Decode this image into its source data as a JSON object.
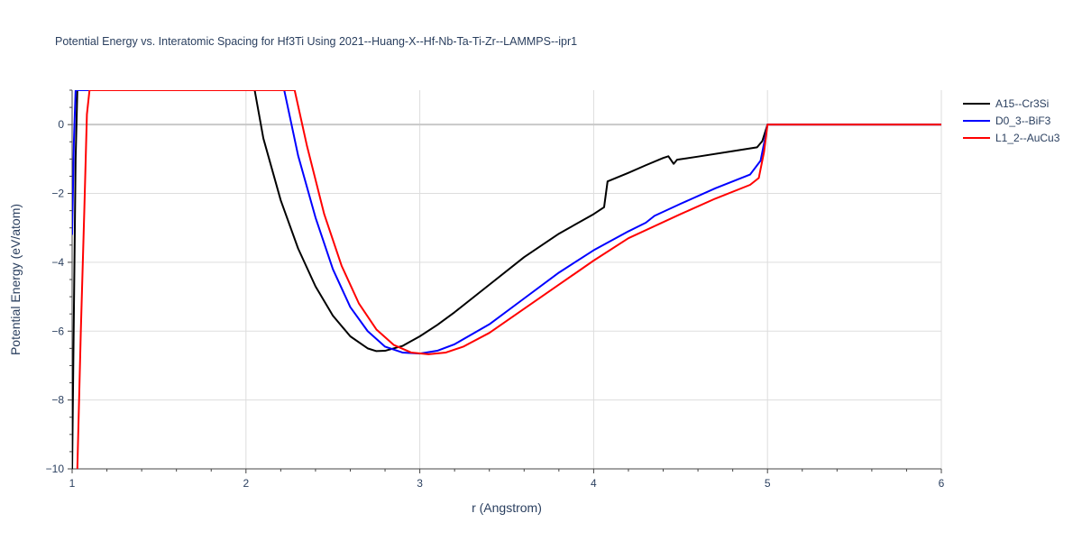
{
  "chart_data": {
    "type": "line",
    "title": "Potential Energy vs. Interatomic Spacing for Hf3Ti Using 2021--Huang-X--Hf-Nb-Ta-Ti-Zr--LAMMPS--ipr1",
    "xlabel": "r (Angstrom)",
    "ylabel": "Potential Energy (eV/atom)",
    "xlim": [
      1,
      6
    ],
    "ylim": [
      -10,
      1
    ],
    "xticks": [
      1,
      2,
      3,
      4,
      5,
      6
    ],
    "xtick_labels": [
      "1",
      "2",
      "3",
      "4",
      "5",
      "6"
    ],
    "yticks": [
      -10,
      -8,
      -6,
      -4,
      -2,
      0
    ],
    "ytick_labels": [
      "−10",
      "−8",
      "−6",
      "−4",
      "−2",
      "0"
    ],
    "grid": true,
    "legend_position": "right",
    "series": [
      {
        "name": "A15--Cr3Si",
        "color": "#000000",
        "x": [
          1.0,
          1.02,
          1.03,
          2.05,
          2.1,
          2.2,
          2.3,
          2.4,
          2.5,
          2.6,
          2.7,
          2.75,
          2.8,
          2.9,
          3.0,
          3.1,
          3.2,
          3.4,
          3.6,
          3.8,
          4.0,
          4.06,
          4.08,
          4.2,
          4.3,
          4.4,
          4.43,
          4.46,
          4.48,
          4.6,
          4.8,
          4.94,
          4.97,
          5.0,
          5.5,
          6.0
        ],
        "y": [
          -10,
          -1.0,
          1,
          1,
          -0.4,
          -2.2,
          -3.6,
          -4.7,
          -5.55,
          -6.15,
          -6.5,
          -6.58,
          -6.57,
          -6.43,
          -6.15,
          -5.82,
          -5.45,
          -4.65,
          -3.85,
          -3.17,
          -2.6,
          -2.4,
          -1.65,
          -1.4,
          -1.18,
          -0.97,
          -0.92,
          -1.14,
          -1.02,
          -0.93,
          -0.77,
          -0.66,
          -0.48,
          0.0,
          0.0,
          0.0
        ]
      },
      {
        "name": "D0_3--BiF3",
        "color": "#0000ff",
        "x": [
          1.0,
          1.01,
          1.02,
          2.22,
          2.3,
          2.4,
          2.5,
          2.6,
          2.7,
          2.8,
          2.9,
          3.0,
          3.1,
          3.2,
          3.4,
          3.6,
          3.8,
          4.0,
          4.2,
          4.3,
          4.35,
          4.5,
          4.7,
          4.9,
          4.96,
          4.99,
          5.0,
          5.5,
          6.0
        ],
        "y": [
          -3.2,
          -0.5,
          1,
          1,
          -0.9,
          -2.7,
          -4.2,
          -5.3,
          -6.0,
          -6.45,
          -6.62,
          -6.65,
          -6.57,
          -6.38,
          -5.8,
          -5.05,
          -4.3,
          -3.65,
          -3.1,
          -2.85,
          -2.65,
          -2.3,
          -1.85,
          -1.45,
          -1.05,
          -0.3,
          0.0,
          0.0,
          0.0
        ]
      },
      {
        "name": "L1_2--AuCu3",
        "color": "#ff0000",
        "x": [
          1.03,
          1.05,
          1.07,
          1.085,
          1.1,
          2.28,
          2.35,
          2.45,
          2.55,
          2.65,
          2.75,
          2.85,
          2.95,
          3.05,
          3.15,
          3.25,
          3.4,
          3.6,
          3.8,
          4.0,
          4.2,
          4.5,
          4.7,
          4.9,
          4.95,
          4.98,
          5.0,
          5.5,
          6.0
        ],
        "y": [
          -10,
          -6.0,
          -2.5,
          0.3,
          1,
          1,
          -0.6,
          -2.6,
          -4.1,
          -5.2,
          -5.95,
          -6.4,
          -6.62,
          -6.67,
          -6.62,
          -6.45,
          -6.05,
          -5.35,
          -4.65,
          -3.95,
          -3.3,
          -2.6,
          -2.15,
          -1.75,
          -1.55,
          -0.8,
          0.0,
          0.0,
          0.0
        ]
      }
    ]
  }
}
